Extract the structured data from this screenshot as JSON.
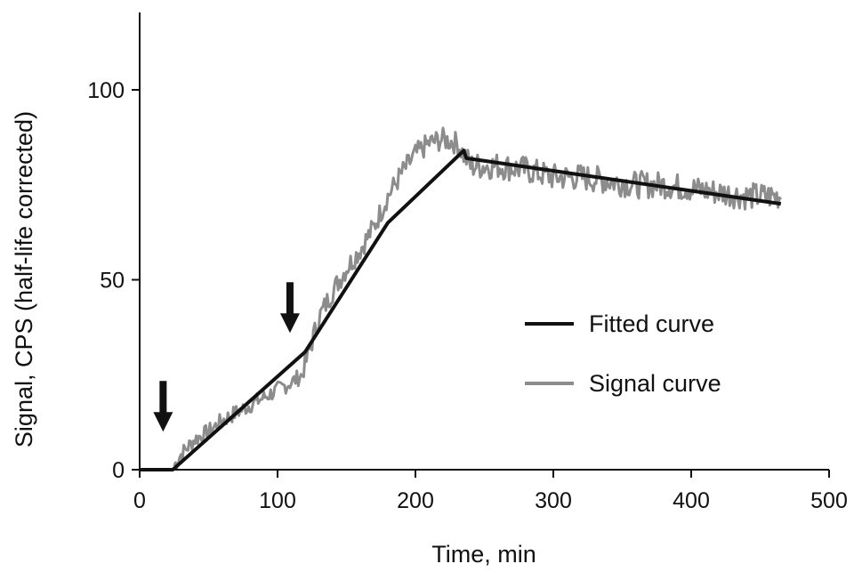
{
  "chart_data": {
    "type": "line",
    "title": "",
    "xlabel": "Time, min",
    "ylabel": "Signal, CPS (half-life corrected)",
    "xlim": [
      0,
      500
    ],
    "ylim": [
      0,
      120
    ],
    "xticks": [
      0,
      100,
      200,
      300,
      400,
      500
    ],
    "yticks": [
      0,
      50,
      100
    ],
    "xtick_labels": [
      "0",
      "100",
      "200",
      "300",
      "400",
      "500"
    ],
    "ytick_labels": [
      "0",
      "50",
      "100"
    ],
    "grid": false,
    "legend_position": "right",
    "series": [
      {
        "name": "Fitted curve",
        "color": "#111111",
        "style": "solid",
        "points": [
          [
            0,
            0
          ],
          [
            24,
            0
          ],
          [
            120,
            31
          ],
          [
            180,
            65
          ],
          [
            235,
            84
          ],
          [
            237,
            82
          ],
          [
            465,
            70
          ]
        ]
      },
      {
        "name": "Signal curve",
        "color": "#8c8c8c",
        "style": "noisy",
        "points": [
          [
            25,
            1
          ],
          [
            30,
            4
          ],
          [
            40,
            8
          ],
          [
            50,
            10
          ],
          [
            60,
            13
          ],
          [
            70,
            15
          ],
          [
            80,
            17
          ],
          [
            90,
            19
          ],
          [
            100,
            21
          ],
          [
            110,
            23
          ],
          [
            118,
            25
          ],
          [
            122,
            30
          ],
          [
            130,
            40
          ],
          [
            140,
            47
          ],
          [
            150,
            53
          ],
          [
            160,
            58
          ],
          [
            170,
            64
          ],
          [
            180,
            72
          ],
          [
            190,
            78
          ],
          [
            200,
            83
          ],
          [
            210,
            86
          ],
          [
            220,
            87
          ],
          [
            230,
            86
          ],
          [
            240,
            80
          ],
          [
            260,
            80
          ],
          [
            280,
            79
          ],
          [
            300,
            77
          ],
          [
            320,
            77
          ],
          [
            340,
            76
          ],
          [
            360,
            75
          ],
          [
            380,
            75
          ],
          [
            400,
            74
          ],
          [
            420,
            73
          ],
          [
            440,
            72
          ],
          [
            465,
            72
          ]
        ]
      }
    ],
    "annotations": [
      {
        "type": "arrow-down",
        "x": 17,
        "y": 10
      },
      {
        "type": "arrow-down",
        "x": 109,
        "y": 36
      }
    ]
  }
}
